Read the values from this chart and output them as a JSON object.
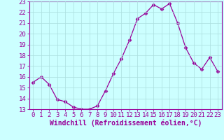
{
  "x": [
    0,
    1,
    2,
    3,
    4,
    5,
    6,
    7,
    8,
    9,
    10,
    11,
    12,
    13,
    14,
    15,
    16,
    17,
    18,
    19,
    20,
    21,
    22,
    23
  ],
  "y": [
    15.5,
    16.0,
    15.3,
    13.9,
    13.7,
    13.2,
    13.0,
    13.0,
    13.3,
    14.7,
    16.3,
    17.7,
    19.4,
    21.4,
    21.9,
    22.7,
    22.3,
    22.8,
    21.0,
    18.7,
    17.3,
    16.7,
    17.8,
    16.5
  ],
  "line_color": "#990099",
  "marker": "D",
  "marker_size": 2.5,
  "bg_color": "#ccffff",
  "grid_color": "#aadddd",
  "xlabel": "Windchill (Refroidissement éolien,°C)",
  "xlabel_fontsize": 7,
  "tick_fontsize": 6.5,
  "xlim": [
    -0.5,
    23.5
  ],
  "ylim": [
    13,
    23
  ],
  "yticks": [
    13,
    14,
    15,
    16,
    17,
    18,
    19,
    20,
    21,
    22,
    23
  ],
  "xticks": [
    0,
    1,
    2,
    3,
    4,
    5,
    6,
    7,
    8,
    9,
    10,
    11,
    12,
    13,
    14,
    15,
    16,
    17,
    18,
    19,
    20,
    21,
    22,
    23
  ]
}
